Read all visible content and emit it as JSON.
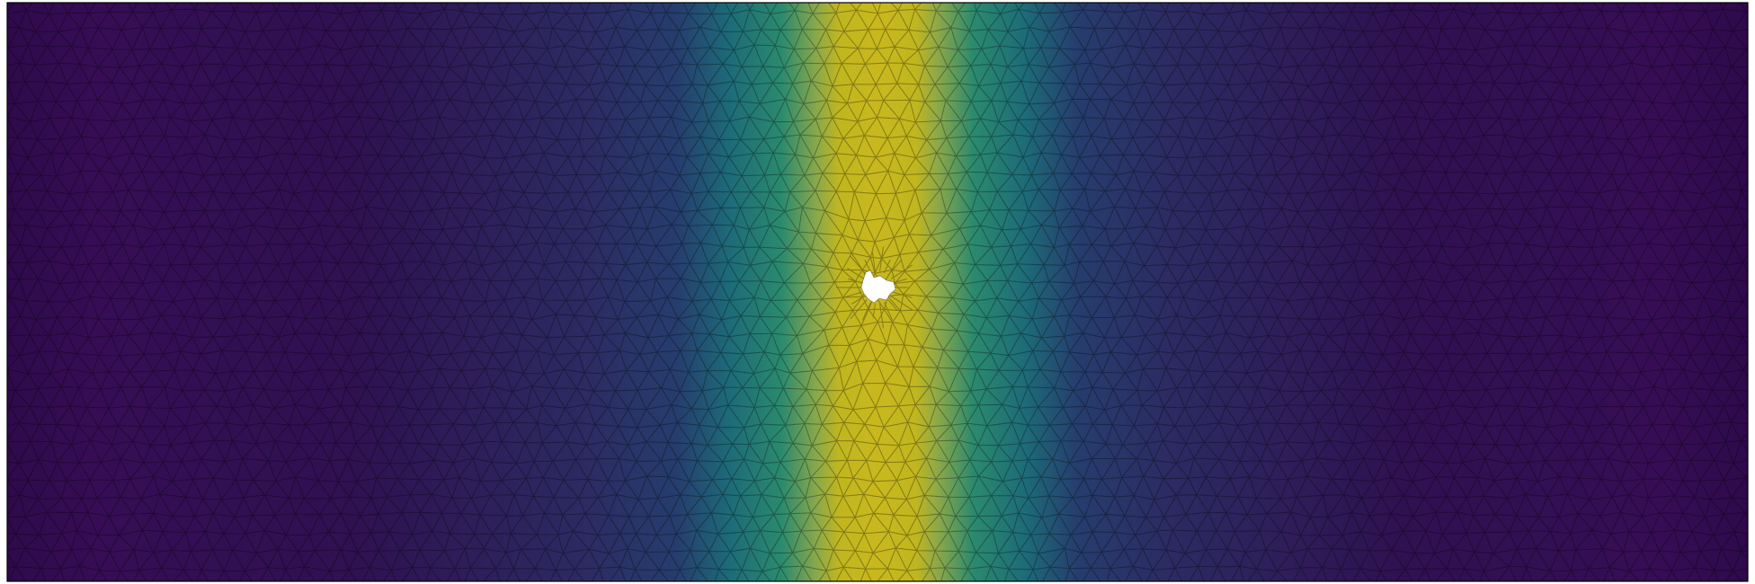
{
  "figure": {
    "kind": "finite-element-mesh-field",
    "colormap": "viridis",
    "colors": {
      "low": "#440154",
      "low_mid": "#3b528b",
      "mid": "#21918c",
      "high_mid": "#5ec962",
      "high": "#fde725",
      "peak_render": "#c8b81e",
      "mesh_line": "#000000",
      "frame": "#000000",
      "hole": "#ffffff"
    },
    "field": {
      "description_hidden": true,
      "peak_center_fraction": 0.5,
      "peak_width_fraction": 0.07
    },
    "mesh": {
      "element": "triangle",
      "visible_edges": true
    },
    "features": [
      "central-hole"
    ]
  }
}
